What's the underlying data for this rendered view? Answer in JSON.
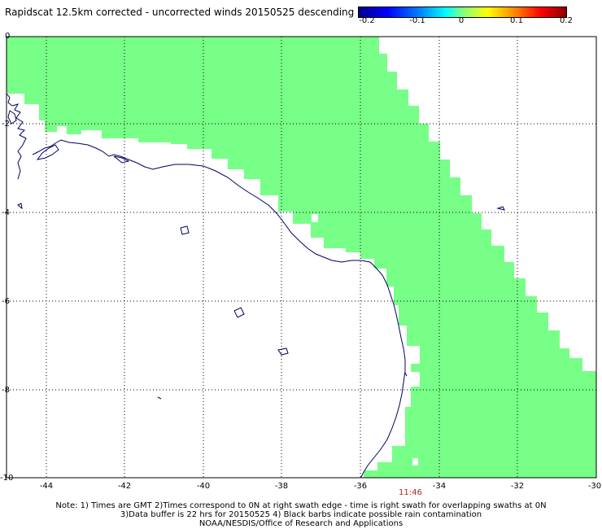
{
  "title": "Rapidscat 12.5km corrected - uncorrected winds 20150525 descending",
  "colorbar": {
    "ticks": [
      "-0.2",
      "-0.1",
      "0",
      "0.1",
      "0.2"
    ],
    "colors": [
      "#00008b",
      "#0000ff",
      "#00ffff",
      "#7fff7f",
      "#ffff00",
      "#ff8800",
      "#ff0000",
      "#8b0000"
    ]
  },
  "map": {
    "swath_color": "#77ff88",
    "coast_color": "#000066",
    "lon_labels": [
      "-44",
      "-42",
      "-40",
      "-38",
      "-36",
      "-34",
      "-32",
      "-30"
    ],
    "lat_labels": [
      "0",
      "-2",
      "-4",
      "-6",
      "-8",
      "-10"
    ]
  },
  "timestamp": "11:46",
  "notes": [
    "Note: 1) Times are GMT 2)Times correspond to 0N at right swath edge - time is right swath for overlapping swaths at 0N",
    "3)Data buffer is 22 hrs for 20150525 4) Black barbs indicate possible rain contamination",
    "NOAA/NESDIS/Office of Research and Applications"
  ]
}
